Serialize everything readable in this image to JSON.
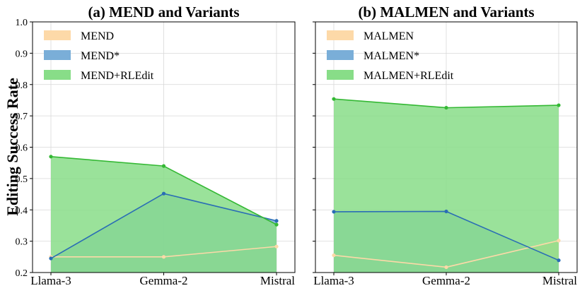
{
  "ylabel": "Editing Success Rate",
  "chart_data": [
    {
      "type": "area",
      "title": "(a) MEND and Variants",
      "categories": [
        "Llama-3",
        "Gemma-2",
        "Mistral"
      ],
      "ylim": [
        0.2,
        1.0
      ],
      "yticks": [
        "0.2",
        "0.3",
        "0.4",
        "0.5",
        "0.6",
        "0.7",
        "0.8",
        "0.9",
        "1.0"
      ],
      "ytick_values": [
        0.2,
        0.3,
        0.4,
        0.5,
        0.6,
        0.7,
        0.8,
        0.9,
        1.0
      ],
      "show_ytick_labels": true,
      "grid": true,
      "legend_position": "top-left",
      "series": [
        {
          "name": "MEND",
          "values": [
            0.25,
            0.25,
            0.283
          ],
          "color": "#fdd9a8",
          "line_color": "#fdd9a8"
        },
        {
          "name": "MEND*",
          "values": [
            0.245,
            0.452,
            0.365
          ],
          "color": "#7aaed8",
          "line_color": "#2a6db5"
        },
        {
          "name": "MEND+RLEdit",
          "values": [
            0.57,
            0.54,
            0.353
          ],
          "color": "#88dd88",
          "line_color": "#34b834"
        }
      ]
    },
    {
      "type": "area",
      "title": "(b) MALMEN and Variants",
      "categories": [
        "Llama-3",
        "Gemma-2",
        "Mistral"
      ],
      "ylim": [
        0.2,
        1.0
      ],
      "yticks": [],
      "ytick_values": [
        0.2,
        0.3,
        0.4,
        0.5,
        0.6,
        0.7,
        0.8,
        0.9,
        1.0
      ],
      "show_ytick_labels": false,
      "grid": true,
      "legend_position": "top-left",
      "series": [
        {
          "name": "MALMEN",
          "values": [
            0.255,
            0.217,
            0.302
          ],
          "color": "#fdd9a8",
          "line_color": "#fdd9a8"
        },
        {
          "name": "MALMEN*",
          "values": [
            0.394,
            0.395,
            0.239
          ],
          "color": "#7aaed8",
          "line_color": "#2a6db5"
        },
        {
          "name": "MALMEN+RLEdit",
          "values": [
            0.754,
            0.726,
            0.734
          ],
          "color": "#88dd88",
          "line_color": "#34b834"
        }
      ]
    }
  ]
}
